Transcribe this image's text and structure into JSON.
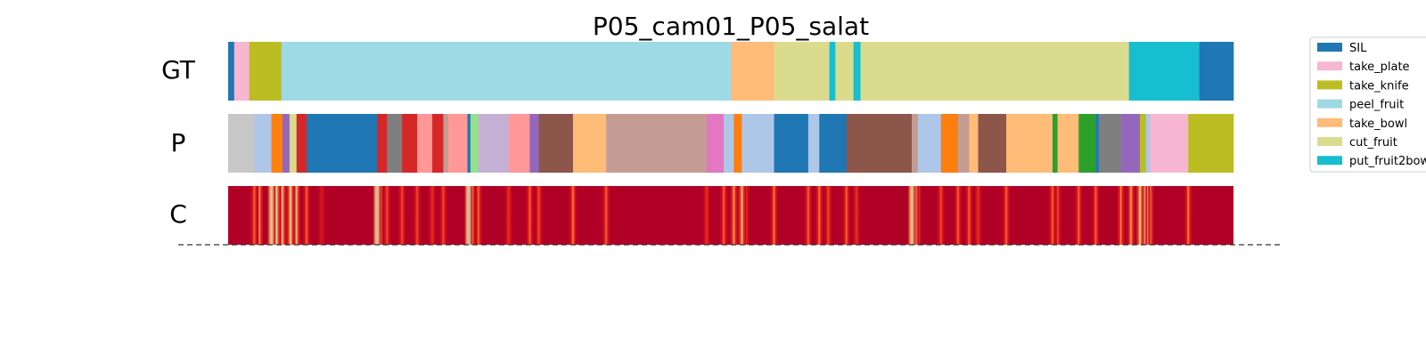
{
  "chart_data": {
    "type": "segmentation_timeline",
    "title": "P05_cam01_P05_salat",
    "rows": [
      "GT",
      "P",
      "C"
    ],
    "legend": {
      "placement": "top-right",
      "entries": [
        {
          "label": "SIL",
          "color": "#1f77b4"
        },
        {
          "label": "take_plate",
          "color": "#f7b6d2"
        },
        {
          "label": "take_knife",
          "color": "#bcbd22"
        },
        {
          "label": "peel_fruit",
          "color": "#9edae5"
        },
        {
          "label": "take_bowl",
          "color": "#ffbb78"
        },
        {
          "label": "cut_fruit",
          "color": "#dbdb8d"
        },
        {
          "label": "put_fruit2bow",
          "color": "#17becf"
        }
      ]
    },
    "gt_segments": [
      {
        "end": 0.006,
        "color": "#1f77b4"
      },
      {
        "end": 0.021,
        "color": "#f7b6d2"
      },
      {
        "end": 0.053,
        "color": "#bcbd22"
      },
      {
        "end": 0.5,
        "color": "#9edae5"
      },
      {
        "end": 0.543,
        "color": "#ffbb78"
      },
      {
        "end": 0.598,
        "color": "#dbdb8d"
      },
      {
        "end": 0.604,
        "color": "#17becf"
      },
      {
        "end": 0.622,
        "color": "#dbdb8d"
      },
      {
        "end": 0.629,
        "color": "#17becf"
      },
      {
        "end": 0.896,
        "color": "#dbdb8d"
      },
      {
        "end": 0.966,
        "color": "#17becf"
      },
      {
        "end": 1.0,
        "color": "#1f77b4"
      }
    ],
    "p_segments": [
      {
        "end": 0.026,
        "color": "#c7c7c7"
      },
      {
        "end": 0.043,
        "color": "#aec7e8"
      },
      {
        "end": 0.054,
        "color": "#ff7f0e"
      },
      {
        "end": 0.061,
        "color": "#9467bd"
      },
      {
        "end": 0.068,
        "color": "#dbdb8d"
      },
      {
        "end": 0.078,
        "color": "#d62728"
      },
      {
        "end": 0.148,
        "color": "#1f77b4"
      },
      {
        "end": 0.158,
        "color": "#d62728"
      },
      {
        "end": 0.173,
        "color": "#7f7f7f"
      },
      {
        "end": 0.188,
        "color": "#d62728"
      },
      {
        "end": 0.203,
        "color": "#ff9896"
      },
      {
        "end": 0.214,
        "color": "#d62728"
      },
      {
        "end": 0.219,
        "color": "#c49c94"
      },
      {
        "end": 0.238,
        "color": "#ff9896"
      },
      {
        "end": 0.241,
        "color": "#1f77b4"
      },
      {
        "end": 0.249,
        "color": "#98df8a"
      },
      {
        "end": 0.279,
        "color": "#c5b0d5"
      },
      {
        "end": 0.3,
        "color": "#ff9896"
      },
      {
        "end": 0.309,
        "color": "#9467bd"
      },
      {
        "end": 0.343,
        "color": "#8c564b"
      },
      {
        "end": 0.376,
        "color": "#ffbb78"
      },
      {
        "end": 0.476,
        "color": "#c49c94"
      },
      {
        "end": 0.493,
        "color": "#e377c2"
      },
      {
        "end": 0.503,
        "color": "#aec7e8"
      },
      {
        "end": 0.511,
        "color": "#ff7f0e"
      },
      {
        "end": 0.543,
        "color": "#aec7e8"
      },
      {
        "end": 0.577,
        "color": "#1f77b4"
      },
      {
        "end": 0.588,
        "color": "#aec7e8"
      },
      {
        "end": 0.615,
        "color": "#1f77b4"
      },
      {
        "end": 0.68,
        "color": "#8c564b"
      },
      {
        "end": 0.686,
        "color": "#c49c94"
      },
      {
        "end": 0.709,
        "color": "#aec7e8"
      },
      {
        "end": 0.726,
        "color": "#ff7f0e"
      },
      {
        "end": 0.737,
        "color": "#c49c94"
      },
      {
        "end": 0.746,
        "color": "#ffbb78"
      },
      {
        "end": 0.774,
        "color": "#8c564b"
      },
      {
        "end": 0.82,
        "color": "#ffbb78"
      },
      {
        "end": 0.825,
        "color": "#2ca02c"
      },
      {
        "end": 0.846,
        "color": "#ffbb78"
      },
      {
        "end": 0.863,
        "color": "#2ca02c"
      },
      {
        "end": 0.866,
        "color": "#1f77b4"
      },
      {
        "end": 0.888,
        "color": "#7f7f7f"
      },
      {
        "end": 0.907,
        "color": "#9467bd"
      },
      {
        "end": 0.913,
        "color": "#bcbd22"
      },
      {
        "end": 0.917,
        "color": "#aec7e8"
      },
      {
        "end": 0.955,
        "color": "#f7b6d2"
      },
      {
        "end": 1.0,
        "color": "#bcbd22"
      }
    ],
    "c_base_color": "#b10026",
    "c_dips": [
      {
        "pos": 0.026,
        "level": 0.45
      },
      {
        "pos": 0.031,
        "level": 0.55
      },
      {
        "pos": 0.043,
        "level": 0.85
      },
      {
        "pos": 0.048,
        "level": 0.7
      },
      {
        "pos": 0.054,
        "level": 0.6
      },
      {
        "pos": 0.062,
        "level": 0.65
      },
      {
        "pos": 0.068,
        "level": 0.6
      },
      {
        "pos": 0.078,
        "level": 0.45
      },
      {
        "pos": 0.093,
        "level": 0.25
      },
      {
        "pos": 0.148,
        "level": 0.9
      },
      {
        "pos": 0.15,
        "level": 0.75
      },
      {
        "pos": 0.158,
        "level": 0.4
      },
      {
        "pos": 0.173,
        "level": 0.4
      },
      {
        "pos": 0.188,
        "level": 0.4
      },
      {
        "pos": 0.203,
        "level": 0.35
      },
      {
        "pos": 0.214,
        "level": 0.4
      },
      {
        "pos": 0.239,
        "level": 0.9
      },
      {
        "pos": 0.242,
        "level": 0.6
      },
      {
        "pos": 0.249,
        "level": 0.45
      },
      {
        "pos": 0.279,
        "level": 0.35
      },
      {
        "pos": 0.3,
        "level": 0.45
      },
      {
        "pos": 0.309,
        "level": 0.4
      },
      {
        "pos": 0.343,
        "level": 0.5
      },
      {
        "pos": 0.376,
        "level": 0.45
      },
      {
        "pos": 0.476,
        "level": 0.35
      },
      {
        "pos": 0.493,
        "level": 0.45
      },
      {
        "pos": 0.503,
        "level": 0.55
      },
      {
        "pos": 0.511,
        "level": 0.6
      },
      {
        "pos": 0.515,
        "level": 0.35
      },
      {
        "pos": 0.543,
        "level": 0.5
      },
      {
        "pos": 0.577,
        "level": 0.45
      },
      {
        "pos": 0.588,
        "level": 0.5
      },
      {
        "pos": 0.597,
        "level": 0.4
      },
      {
        "pos": 0.615,
        "level": 0.45
      },
      {
        "pos": 0.625,
        "level": 0.35
      },
      {
        "pos": 0.68,
        "level": 0.85
      },
      {
        "pos": 0.683,
        "level": 0.75
      },
      {
        "pos": 0.686,
        "level": 0.5
      },
      {
        "pos": 0.709,
        "level": 0.4
      },
      {
        "pos": 0.726,
        "level": 0.45
      },
      {
        "pos": 0.737,
        "level": 0.45
      },
      {
        "pos": 0.746,
        "level": 0.35
      },
      {
        "pos": 0.774,
        "level": 0.45
      },
      {
        "pos": 0.82,
        "level": 0.45
      },
      {
        "pos": 0.825,
        "level": 0.4
      },
      {
        "pos": 0.846,
        "level": 0.45
      },
      {
        "pos": 0.863,
        "level": 0.45
      },
      {
        "pos": 0.888,
        "level": 0.5
      },
      {
        "pos": 0.898,
        "level": 0.55
      },
      {
        "pos": 0.907,
        "level": 0.65
      },
      {
        "pos": 0.91,
        "level": 0.85
      },
      {
        "pos": 0.913,
        "level": 0.7
      },
      {
        "pos": 0.917,
        "level": 0.55
      },
      {
        "pos": 0.955,
        "level": 0.5
      }
    ]
  }
}
